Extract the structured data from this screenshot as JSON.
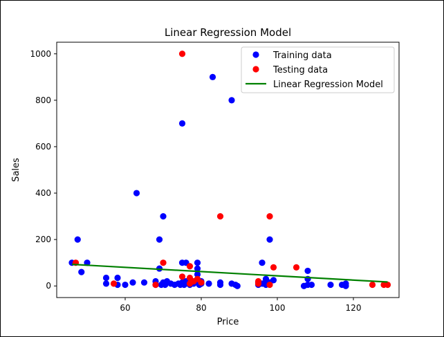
{
  "chart_data": {
    "type": "scatter",
    "title": "Linear Regression Model",
    "xlabel": "Price",
    "ylabel": "Sales",
    "xlim": [
      42,
      132
    ],
    "ylim": [
      -50,
      1050
    ],
    "xticks": [
      60,
      80,
      100,
      120
    ],
    "yticks": [
      0,
      200,
      400,
      600,
      800,
      1000
    ],
    "grid": false,
    "legend_position": "top-right",
    "series": [
      {
        "name": "Training data",
        "kind": "scatter",
        "color": "#0000ff",
        "points": [
          [
            46,
            100
          ],
          [
            47.5,
            200
          ],
          [
            48.5,
            60
          ],
          [
            50,
            100
          ],
          [
            55,
            35
          ],
          [
            55,
            10
          ],
          [
            58,
            35
          ],
          [
            58,
            5
          ],
          [
            60,
            5
          ],
          [
            62,
            15
          ],
          [
            63,
            400
          ],
          [
            65,
            15
          ],
          [
            68,
            20
          ],
          [
            68,
            5
          ],
          [
            69,
            75
          ],
          [
            69,
            200
          ],
          [
            69.5,
            5
          ],
          [
            70,
            300
          ],
          [
            70,
            15
          ],
          [
            70.5,
            5
          ],
          [
            71,
            20
          ],
          [
            72,
            10
          ],
          [
            73,
            5
          ],
          [
            74,
            10
          ],
          [
            74.5,
            5
          ],
          [
            75,
            700
          ],
          [
            75,
            100
          ],
          [
            75,
            15
          ],
          [
            75.5,
            5
          ],
          [
            76,
            100
          ],
          [
            76,
            20
          ],
          [
            77,
            5
          ],
          [
            78,
            10
          ],
          [
            78,
            15
          ],
          [
            79,
            100
          ],
          [
            79,
            75
          ],
          [
            79,
            50
          ],
          [
            79,
            25
          ],
          [
            79.5,
            5
          ],
          [
            80,
            20
          ],
          [
            80,
            10
          ],
          [
            82,
            10
          ],
          [
            83,
            900
          ],
          [
            85,
            15
          ],
          [
            85,
            5
          ],
          [
            88,
            800
          ],
          [
            88,
            10
          ],
          [
            89,
            5
          ],
          [
            89.5,
            0
          ],
          [
            95,
            15
          ],
          [
            95,
            5
          ],
          [
            96,
            100
          ],
          [
            96,
            10
          ],
          [
            97,
            30
          ],
          [
            97,
            20
          ],
          [
            97,
            5
          ],
          [
            98,
            200
          ],
          [
            98,
            15
          ],
          [
            99,
            25
          ],
          [
            107,
            0
          ],
          [
            108,
            65
          ],
          [
            108,
            30
          ],
          [
            108,
            5
          ],
          [
            109,
            5
          ],
          [
            114,
            5
          ],
          [
            117,
            5
          ],
          [
            118,
            10
          ],
          [
            118,
            0
          ]
        ]
      },
      {
        "name": "Testing data",
        "kind": "scatter",
        "color": "#ff0000",
        "points": [
          [
            47,
            100
          ],
          [
            57,
            10
          ],
          [
            68,
            5
          ],
          [
            70,
            100
          ],
          [
            75,
            1000
          ],
          [
            75,
            40
          ],
          [
            77,
            85
          ],
          [
            77,
            35
          ],
          [
            77,
            10
          ],
          [
            78,
            20
          ],
          [
            79,
            30
          ],
          [
            80,
            15
          ],
          [
            85,
            300
          ],
          [
            95,
            20
          ],
          [
            95,
            10
          ],
          [
            98,
            300
          ],
          [
            98,
            5
          ],
          [
            99,
            80
          ],
          [
            105,
            80
          ],
          [
            125,
            5
          ],
          [
            128,
            5
          ],
          [
            129,
            5
          ]
        ]
      },
      {
        "name": "Linear Regression Model",
        "kind": "line",
        "color": "#008000",
        "points": [
          [
            46,
            93
          ],
          [
            129,
            17
          ]
        ]
      }
    ]
  }
}
